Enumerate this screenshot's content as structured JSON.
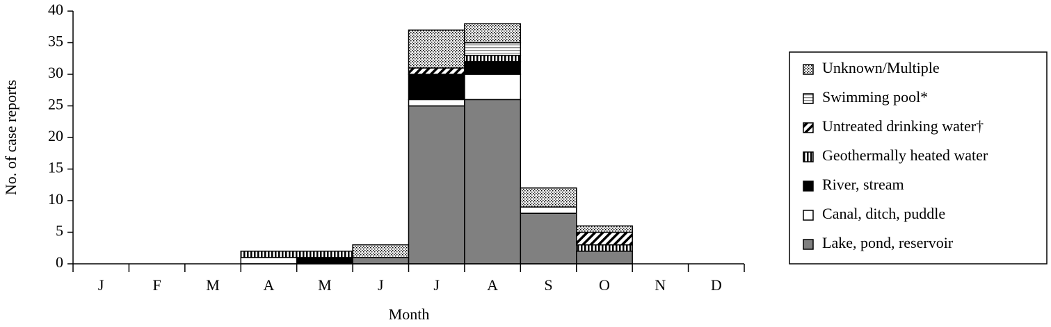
{
  "chart_data": {
    "type": "stacked_bar",
    "x_label": "Month",
    "y_label": "No. of case reports",
    "categories": [
      "J",
      "F",
      "M",
      "A",
      "M",
      "J",
      "J",
      "A",
      "S",
      "O",
      "N",
      "D"
    ],
    "ylim": [
      0,
      40
    ],
    "yticks": [
      0,
      5,
      10,
      15,
      20,
      25,
      30,
      35,
      40
    ],
    "legend": "right",
    "series": [
      {
        "name": "Lake, pond, reservoir",
        "color": "#808080",
        "values": [
          0,
          0,
          0,
          0,
          0,
          1,
          25,
          26,
          8,
          2,
          0,
          0
        ]
      },
      {
        "name": "Canal, ditch, puddle",
        "color": "#ffffff",
        "values": [
          0,
          0,
          0,
          1,
          0,
          0,
          1,
          4,
          1,
          0,
          0,
          0
        ]
      },
      {
        "name": "River, stream",
        "color": "#000000",
        "values": [
          0,
          0,
          0,
          0,
          1,
          0,
          4,
          2,
          0,
          0,
          0,
          0
        ]
      },
      {
        "name": "Geothermally heated water",
        "color": "vertical-stripes",
        "values": [
          0,
          0,
          0,
          1,
          1,
          0,
          0,
          1,
          0,
          1,
          0,
          0
        ]
      },
      {
        "name": "Untreated drinking water†",
        "color": "diagonal-hatch",
        "values": [
          0,
          0,
          0,
          0,
          0,
          0,
          1,
          0,
          0,
          2,
          0,
          0
        ]
      },
      {
        "name": "Swimming pool*",
        "color": "horizontal-stripes",
        "values": [
          0,
          0,
          0,
          0,
          0,
          0,
          0,
          2,
          0,
          0,
          0,
          0
        ]
      },
      {
        "name": "Unknown/Multiple",
        "color": "dots",
        "values": [
          0,
          0,
          0,
          0,
          0,
          2,
          6,
          3,
          3,
          1,
          0,
          0
        ]
      }
    ]
  }
}
